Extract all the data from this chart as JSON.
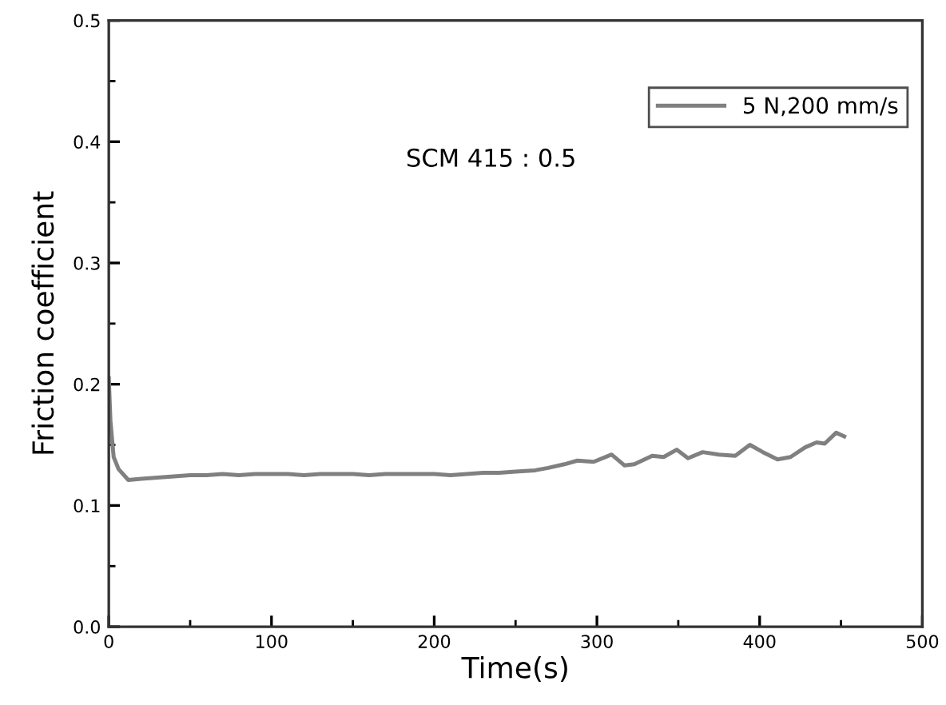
{
  "chart_data": {
    "type": "line",
    "xlabel": "Time(s)",
    "ylabel": "Friction coefficient",
    "annotations": [
      "SCM 415 : 0.5"
    ],
    "series": [
      {
        "name": "5 N,200 mm/s",
        "color": "#808080",
        "x": [
          0,
          1,
          3,
          6,
          12,
          20,
          30,
          40,
          50,
          60,
          70,
          80,
          90,
          100,
          110,
          120,
          130,
          140,
          150,
          160,
          170,
          180,
          190,
          200,
          210,
          220,
          230,
          240,
          250,
          262,
          270,
          280,
          288,
          298,
          309,
          317,
          323,
          334,
          341,
          349,
          356,
          365,
          375,
          385,
          394,
          402,
          411,
          419,
          428,
          435,
          440,
          447,
          452
        ],
        "values": [
          0.205,
          0.17,
          0.14,
          0.13,
          0.121,
          0.122,
          0.123,
          0.124,
          0.125,
          0.125,
          0.126,
          0.125,
          0.126,
          0.126,
          0.126,
          0.125,
          0.126,
          0.126,
          0.126,
          0.125,
          0.126,
          0.126,
          0.126,
          0.126,
          0.125,
          0.126,
          0.127,
          0.127,
          0.128,
          0.129,
          0.131,
          0.134,
          0.137,
          0.136,
          0.142,
          0.133,
          0.134,
          0.141,
          0.14,
          0.146,
          0.139,
          0.144,
          0.142,
          0.141,
          0.15,
          0.144,
          0.138,
          0.14,
          0.148,
          0.152,
          0.151,
          0.16,
          0.157
        ]
      }
    ],
    "xlim": [
      0,
      500
    ],
    "xticks": [
      0,
      100,
      200,
      300,
      400,
      500
    ],
    "ylim": [
      0.0,
      0.5
    ],
    "yticks": [
      {
        "value": 0.0,
        "label": "0.0"
      },
      0.1,
      0.2,
      0.3,
      0.4,
      0.5
    ],
    "grid": false,
    "legend": "top right",
    "marker": "none",
    "line_style": "solid"
  }
}
